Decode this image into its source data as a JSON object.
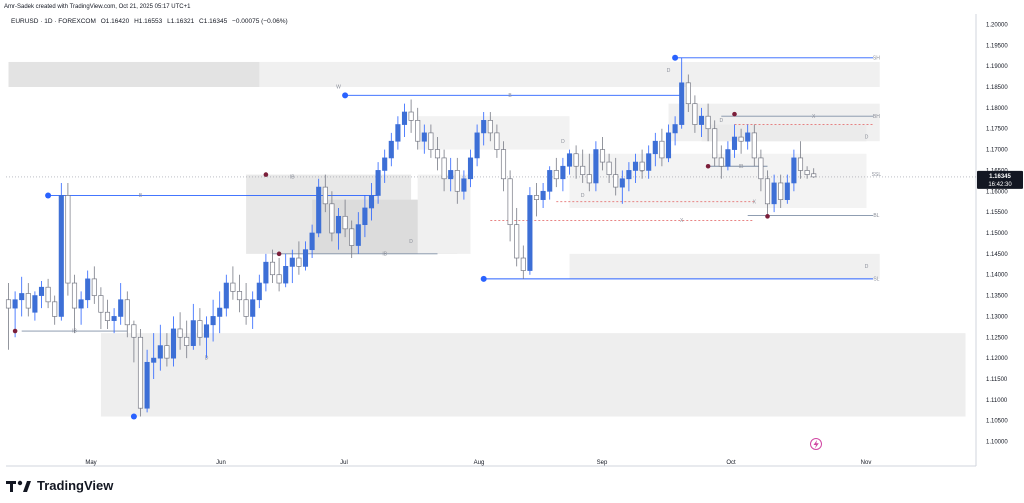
{
  "header": {
    "credit": "Amr-Sadek created with TradingView.com, Oct 21, 2025 05:17 UTC+1"
  },
  "legend": {
    "symbol": "EURUSD · 1D · FOREXCOM",
    "open": "O1.16420",
    "high": "H1.16553",
    "low": "L1.16321",
    "close": "C1.16345",
    "change": "−0.00075 (−0.06%)"
  },
  "price_tag": {
    "price": "1.16345",
    "time": "16:42:30"
  },
  "brand": {
    "name": "TradingView"
  },
  "chart_data": {
    "type": "candlestick",
    "ylim": [
      1.0975,
      1.2025
    ],
    "y_ticks": [
      "1.20000",
      "1.19500",
      "1.19000",
      "1.18500",
      "1.18000",
      "1.17500",
      "1.17000",
      "1.16500",
      "1.16000",
      "1.15500",
      "1.15000",
      "1.14500",
      "1.14000",
      "1.13500",
      "1.13000",
      "1.12500",
      "1.12000",
      "1.11500",
      "1.11000",
      "1.10500",
      "1.10000"
    ],
    "x_labels": [
      {
        "label": "May",
        "date": "2025-05-01"
      },
      {
        "label": "Jun",
        "date": "2025-06-02"
      },
      {
        "label": "Jul",
        "date": "2025-07-01"
      },
      {
        "label": "Aug",
        "date": "2025-08-01"
      },
      {
        "label": "Sep",
        "date": "2025-09-01"
      },
      {
        "label": "Oct",
        "date": "2025-10-01"
      },
      {
        "label": "Nov",
        "date": "2025-11-03"
      }
    ],
    "candles": [
      [
        1.134,
        1.138,
        1.122,
        1.132
      ],
      [
        1.132,
        1.136,
        1.125,
        1.134
      ],
      [
        1.134,
        1.1395,
        1.13,
        1.1355
      ],
      [
        1.1355,
        1.138,
        1.13,
        1.132
      ],
      [
        1.131,
        1.136,
        1.129,
        1.135
      ],
      [
        1.135,
        1.1385,
        1.132,
        1.137
      ],
      [
        1.137,
        1.139,
        1.132,
        1.1335
      ],
      [
        1.1335,
        1.135,
        1.128,
        1.13
      ],
      [
        1.13,
        1.162,
        1.129,
        1.159
      ],
      [
        1.159,
        1.162,
        1.135,
        1.138
      ],
      [
        1.138,
        1.14,
        1.126,
        1.132
      ],
      [
        1.132,
        1.136,
        1.128,
        1.134
      ],
      [
        1.134,
        1.141,
        1.132,
        1.139
      ],
      [
        1.139,
        1.142,
        1.133,
        1.135
      ],
      [
        1.135,
        1.137,
        1.127,
        1.131
      ],
      [
        1.131,
        1.134,
        1.127,
        1.129
      ],
      [
        1.129,
        1.132,
        1.126,
        1.13
      ],
      [
        1.13,
        1.138,
        1.128,
        1.134
      ],
      [
        1.134,
        1.136,
        1.125,
        1.128
      ],
      [
        1.128,
        1.129,
        1.119,
        1.125
      ],
      [
        1.125,
        1.127,
        1.106,
        1.108
      ],
      [
        1.108,
        1.122,
        1.107,
        1.119
      ],
      [
        1.119,
        1.126,
        1.115,
        1.12
      ],
      [
        1.12,
        1.128,
        1.117,
        1.123
      ],
      [
        1.123,
        1.126,
        1.118,
        1.12
      ],
      [
        1.12,
        1.13,
        1.118,
        1.127
      ],
      [
        1.127,
        1.131,
        1.122,
        1.125
      ],
      [
        1.125,
        1.129,
        1.12,
        1.123
      ],
      [
        1.123,
        1.133,
        1.122,
        1.129
      ],
      [
        1.129,
        1.132,
        1.123,
        1.125
      ],
      [
        1.125,
        1.13,
        1.12,
        1.128
      ],
      [
        1.128,
        1.134,
        1.124,
        1.13
      ],
      [
        1.13,
        1.136,
        1.126,
        1.132
      ],
      [
        1.132,
        1.14,
        1.13,
        1.138
      ],
      [
        1.138,
        1.142,
        1.134,
        1.136
      ],
      [
        1.136,
        1.14,
        1.131,
        1.134
      ],
      [
        1.134,
        1.138,
        1.128,
        1.13
      ],
      [
        1.13,
        1.136,
        1.127,
        1.134
      ],
      [
        1.134,
        1.14,
        1.132,
        1.138
      ],
      [
        1.138,
        1.145,
        1.136,
        1.143
      ],
      [
        1.143,
        1.146,
        1.138,
        1.14
      ],
      [
        1.14,
        1.144,
        1.136,
        1.138
      ],
      [
        1.138,
        1.145,
        1.137,
        1.142
      ],
      [
        1.142,
        1.146,
        1.138,
        1.144
      ],
      [
        1.144,
        1.148,
        1.14,
        1.142
      ],
      [
        1.142,
        1.148,
        1.141,
        1.146
      ],
      [
        1.146,
        1.152,
        1.144,
        1.15
      ],
      [
        1.15,
        1.163,
        1.149,
        1.161
      ],
      [
        1.161,
        1.164,
        1.155,
        1.157
      ],
      [
        1.157,
        1.16,
        1.148,
        1.15
      ],
      [
        1.15,
        1.156,
        1.146,
        1.154
      ],
      [
        1.154,
        1.158,
        1.149,
        1.151
      ],
      [
        1.151,
        1.153,
        1.144,
        1.147
      ],
      [
        1.147,
        1.155,
        1.145,
        1.152
      ],
      [
        1.152,
        1.159,
        1.149,
        1.156
      ],
      [
        1.156,
        1.162,
        1.153,
        1.159
      ],
      [
        1.159,
        1.167,
        1.157,
        1.165
      ],
      [
        1.165,
        1.17,
        1.162,
        1.168
      ],
      [
        1.168,
        1.174,
        1.166,
        1.172
      ],
      [
        1.172,
        1.178,
        1.17,
        1.176
      ],
      [
        1.176,
        1.181,
        1.173,
        1.179
      ],
      [
        1.179,
        1.182,
        1.174,
        1.177
      ],
      [
        1.177,
        1.18,
        1.17,
        1.172
      ],
      [
        1.172,
        1.176,
        1.169,
        1.174
      ],
      [
        1.174,
        1.176,
        1.168,
        1.17
      ],
      [
        1.17,
        1.173,
        1.165,
        1.168
      ],
      [
        1.168,
        1.17,
        1.16,
        1.163
      ],
      [
        1.163,
        1.168,
        1.16,
        1.165
      ],
      [
        1.165,
        1.168,
        1.157,
        1.16
      ],
      [
        1.16,
        1.165,
        1.158,
        1.163
      ],
      [
        1.163,
        1.17,
        1.161,
        1.168
      ],
      [
        1.168,
        1.176,
        1.166,
        1.174
      ],
      [
        1.174,
        1.179,
        1.171,
        1.177
      ],
      [
        1.177,
        1.179,
        1.172,
        1.174
      ],
      [
        1.174,
        1.176,
        1.168,
        1.17
      ],
      [
        1.17,
        1.172,
        1.16,
        1.163
      ],
      [
        1.163,
        1.165,
        1.148,
        1.152
      ],
      [
        1.152,
        1.156,
        1.142,
        1.144
      ],
      [
        1.144,
        1.147,
        1.139,
        1.141
      ],
      [
        1.141,
        1.161,
        1.14,
        1.159
      ],
      [
        1.159,
        1.162,
        1.154,
        1.158
      ],
      [
        1.158,
        1.162,
        1.156,
        1.16
      ],
      [
        1.16,
        1.166,
        1.158,
        1.165
      ],
      [
        1.165,
        1.168,
        1.161,
        1.163
      ],
      [
        1.163,
        1.168,
        1.16,
        1.166
      ],
      [
        1.166,
        1.17,
        1.164,
        1.169
      ],
      [
        1.169,
        1.171,
        1.163,
        1.166
      ],
      [
        1.166,
        1.17,
        1.162,
        1.164
      ],
      [
        1.164,
        1.169,
        1.16,
        1.162
      ],
      [
        1.162,
        1.172,
        1.16,
        1.17
      ],
      [
        1.17,
        1.173,
        1.165,
        1.167
      ],
      [
        1.167,
        1.169,
        1.162,
        1.164
      ],
      [
        1.164,
        1.168,
        1.159,
        1.161
      ],
      [
        1.161,
        1.165,
        1.157,
        1.163
      ],
      [
        1.163,
        1.167,
        1.16,
        1.165
      ],
      [
        1.165,
        1.169,
        1.162,
        1.167
      ],
      [
        1.167,
        1.17,
        1.163,
        1.165
      ],
      [
        1.165,
        1.171,
        1.163,
        1.169
      ],
      [
        1.169,
        1.174,
        1.166,
        1.172
      ],
      [
        1.172,
        1.175,
        1.166,
        1.168
      ],
      [
        1.168,
        1.176,
        1.167,
        1.174
      ],
      [
        1.174,
        1.178,
        1.171,
        1.176
      ],
      [
        1.176,
        1.192,
        1.175,
        1.186
      ],
      [
        1.186,
        1.188,
        1.179,
        1.181
      ],
      [
        1.181,
        1.183,
        1.174,
        1.176
      ],
      [
        1.176,
        1.18,
        1.173,
        1.178
      ],
      [
        1.178,
        1.181,
        1.172,
        1.175
      ],
      [
        1.175,
        1.177,
        1.166,
        1.168
      ],
      [
        1.168,
        1.171,
        1.163,
        1.166
      ],
      [
        1.166,
        1.172,
        1.165,
        1.17
      ],
      [
        1.17,
        1.176,
        1.168,
        1.173
      ],
      [
        1.173,
        1.175,
        1.169,
        1.172
      ],
      [
        1.172,
        1.176,
        1.17,
        1.174
      ],
      [
        1.174,
        1.176,
        1.166,
        1.168
      ],
      [
        1.168,
        1.17,
        1.16,
        1.163
      ],
      [
        1.163,
        1.165,
        1.154,
        1.157
      ],
      [
        1.157,
        1.164,
        1.155,
        1.162
      ],
      [
        1.162,
        1.164,
        1.156,
        1.158
      ],
      [
        1.158,
        1.164,
        1.157,
        1.162
      ],
      [
        1.162,
        1.17,
        1.16,
        1.168
      ],
      [
        1.168,
        1.172,
        1.163,
        1.165
      ],
      [
        1.165,
        1.166,
        1.163,
        1.164
      ],
      [
        1.1642,
        1.16553,
        1.16321,
        1.16345
      ]
    ],
    "x_start_date": "2025-04-14",
    "bars_per_month_est": 22,
    "annotations": {
      "levels": [
        {
          "label": "SH",
          "price": 1.192
        },
        {
          "label": "BH",
          "price": 1.178
        },
        {
          "label": "SSL",
          "price": 1.164
        },
        {
          "label": "BL",
          "price": 1.1542
        },
        {
          "label": "SL",
          "price": 1.139
        }
      ],
      "lines": [
        {
          "label": "B",
          "price": 1.183
        },
        {
          "label": "B",
          "price": 1.159
        },
        {
          "label": "IB",
          "price": 1.1265
        },
        {
          "label": "IB",
          "price": 1.145
        },
        {
          "label": "IB",
          "price": 1.1635
        },
        {
          "label": "X",
          "price": 1.178
        },
        {
          "label": "X",
          "price": 1.153
        },
        {
          "label": "X",
          "price": 1.1575
        },
        {
          "label": "IB",
          "price": 1.166
        }
      ],
      "zone_labels": [
        "W",
        "D",
        "D",
        "D",
        "D",
        "D",
        "D",
        "D",
        "D",
        "D"
      ]
    }
  }
}
